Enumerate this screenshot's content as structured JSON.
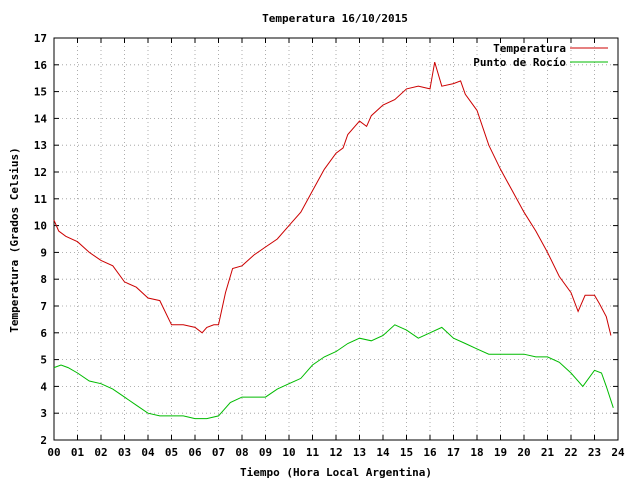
{
  "chart_data": {
    "type": "line",
    "title": "Temperatura 16/10/2015",
    "xlabel": "Tiempo (Hora Local Argentina)",
    "ylabel": "Temperatura (Grados Celsius)",
    "xlim": [
      0,
      24
    ],
    "ylim": [
      2,
      17
    ],
    "x_ticks": [
      "00",
      "01",
      "02",
      "03",
      "04",
      "05",
      "06",
      "07",
      "08",
      "09",
      "10",
      "11",
      "12",
      "13",
      "14",
      "15",
      "16",
      "17",
      "18",
      "19",
      "20",
      "21",
      "22",
      "23",
      "24"
    ],
    "y_ticks": [
      "2",
      "3",
      "4",
      "5",
      "6",
      "7",
      "8",
      "9",
      "10",
      "11",
      "12",
      "13",
      "14",
      "15",
      "16",
      "17"
    ],
    "grid": true,
    "legend_position": "top-right",
    "series": [
      {
        "name": "Temperatura",
        "color": "#cc0000",
        "x": [
          0,
          0.2,
          0.5,
          1,
          1.5,
          2,
          2.5,
          3,
          3.5,
          4,
          4.5,
          5,
          5.5,
          6,
          6.3,
          6.5,
          6.8,
          7,
          7.3,
          7.6,
          8,
          8.5,
          9,
          9.5,
          10,
          10.5,
          11,
          11.5,
          12,
          12.3,
          12.5,
          13,
          13.3,
          13.5,
          14,
          14.5,
          15,
          15.5,
          16,
          16.2,
          16.5,
          17,
          17.3,
          17.5,
          18,
          18.5,
          19,
          19.5,
          20,
          20.5,
          21,
          21.5,
          22,
          22.3,
          22.6,
          23,
          23.2,
          23.5,
          23.7
        ],
        "y": [
          10.2,
          9.8,
          9.6,
          9.4,
          9.0,
          8.7,
          8.5,
          7.9,
          7.7,
          7.3,
          7.2,
          6.3,
          6.3,
          6.2,
          6.0,
          6.2,
          6.3,
          6.3,
          7.5,
          8.4,
          8.5,
          8.9,
          9.2,
          9.5,
          10.0,
          10.5,
          11.3,
          12.1,
          12.7,
          12.9,
          13.4,
          13.9,
          13.7,
          14.1,
          14.5,
          14.7,
          15.1,
          15.2,
          15.1,
          16.1,
          15.2,
          15.3,
          15.4,
          14.9,
          14.3,
          13.0,
          12.1,
          11.3,
          10.5,
          9.8,
          9.0,
          8.1,
          7.5,
          6.8,
          7.4,
          7.4,
          7.1,
          6.6,
          5.9
        ]
      },
      {
        "name": "Punto de Rocío",
        "color": "#00bb00",
        "x": [
          0,
          0.3,
          0.6,
          1,
          1.5,
          2,
          2.5,
          3,
          3.5,
          4,
          4.5,
          5,
          5.5,
          6,
          6.5,
          7,
          7.5,
          8,
          8.5,
          9,
          9.5,
          10,
          10.5,
          11,
          11.5,
          12,
          12.5,
          13,
          13.5,
          14,
          14.5,
          15,
          15.5,
          16,
          16.5,
          17,
          17.5,
          18,
          18.5,
          19,
          19.5,
          20,
          20.5,
          21,
          21.5,
          22,
          22.5,
          23,
          23.3,
          23.5,
          23.8
        ],
        "y": [
          4.7,
          4.8,
          4.7,
          4.5,
          4.2,
          4.1,
          3.9,
          3.6,
          3.3,
          3.0,
          2.9,
          2.9,
          2.9,
          2.8,
          2.8,
          2.9,
          3.4,
          3.6,
          3.6,
          3.6,
          3.9,
          4.1,
          4.3,
          4.8,
          5.1,
          5.3,
          5.6,
          5.8,
          5.7,
          5.9,
          6.3,
          6.1,
          5.8,
          6.0,
          6.2,
          5.8,
          5.6,
          5.4,
          5.2,
          5.2,
          5.2,
          5.2,
          5.1,
          5.1,
          4.9,
          4.5,
          4.0,
          4.6,
          4.5,
          4.0,
          3.2
        ]
      }
    ]
  }
}
